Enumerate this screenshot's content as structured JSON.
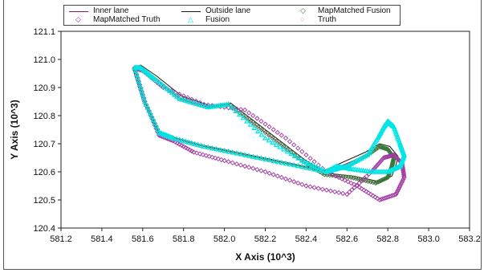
{
  "chart_data": {
    "type": "line",
    "title": "",
    "xlabel": "X Axis (10^3)",
    "ylabel": "Y Axis (10^3)",
    "xlim": [
      581.2,
      583.2
    ],
    "ylim": [
      120.4,
      121.1
    ],
    "xticks": [
      "581.2",
      "581.4",
      "581.6",
      "581.8",
      "582.0",
      "582.2",
      "582.4",
      "582.6",
      "582.8",
      "583.0",
      "583.2"
    ],
    "yticks": [
      "121.1",
      "121.0",
      "120.9",
      "120.8",
      "120.7",
      "120.6",
      "120.5",
      "120.4"
    ],
    "grid": false,
    "legend_position": "top",
    "series": [
      {
        "name": "Inner lane",
        "style": "line",
        "color": "#8b1a4a",
        "x": [
          581.56,
          581.59,
          581.66,
          581.78,
          581.92,
          582.02,
          582.2,
          582.38,
          582.49,
          582.62,
          582.74,
          582.8,
          582.82,
          582.83,
          582.8,
          582.76,
          582.7,
          582.5,
          582.3,
          582.1,
          581.9,
          581.75,
          581.68,
          581.61,
          581.56
        ],
        "y": [
          120.97,
          120.97,
          120.93,
          120.86,
          120.83,
          120.84,
          120.74,
          120.64,
          120.59,
          120.58,
          120.56,
          120.58,
          120.62,
          120.65,
          120.68,
          120.69,
          120.66,
          120.6,
          120.63,
          120.66,
          120.69,
          120.72,
          120.74,
          120.85,
          120.97
        ]
      },
      {
        "name": "Outside lane",
        "style": "line",
        "color": "#1a1a1a",
        "x": [
          581.55,
          581.59,
          581.67,
          581.79,
          581.93,
          582.03,
          582.21,
          582.39,
          582.5,
          582.63,
          582.76,
          582.82,
          582.84,
          582.85,
          582.81,
          582.76,
          582.69,
          582.49,
          582.29,
          582.09,
          581.89,
          581.74,
          581.67,
          581.6,
          581.55
        ],
        "y": [
          120.97,
          120.98,
          120.94,
          120.87,
          120.835,
          120.845,
          120.745,
          120.645,
          120.595,
          120.585,
          120.565,
          120.585,
          120.625,
          120.655,
          120.69,
          120.7,
          120.67,
          120.605,
          120.635,
          120.665,
          120.695,
          120.725,
          120.745,
          120.855,
          120.97
        ]
      },
      {
        "name": "MapMatched Fusion",
        "style": "marker",
        "marker": "diamond",
        "color": "#3a7a3a",
        "x": [
          581.56,
          581.59,
          581.66,
          581.78,
          581.92,
          582.02,
          582.2,
          582.38,
          582.49,
          582.62,
          582.74,
          582.8,
          582.82,
          582.83,
          582.8,
          582.76,
          582.7,
          582.6,
          582.5,
          582.3,
          582.1,
          581.9,
          581.75,
          581.68,
          581.61,
          581.56
        ],
        "y": [
          120.97,
          120.97,
          120.93,
          120.86,
          120.83,
          120.84,
          120.74,
          120.64,
          120.59,
          120.58,
          120.56,
          120.58,
          120.62,
          120.65,
          120.68,
          120.69,
          120.66,
          120.62,
          120.6,
          120.63,
          120.66,
          120.69,
          120.72,
          120.74,
          120.85,
          120.97
        ]
      },
      {
        "name": "MapMatched Truth",
        "style": "marker",
        "marker": "diamond",
        "color": "#a03aa0",
        "x": [
          581.56,
          581.6,
          581.7,
          581.9,
          582.1,
          582.3,
          582.5,
          582.65,
          582.76,
          582.84,
          582.88,
          582.87,
          582.83,
          582.78,
          582.72,
          582.6,
          582.4,
          582.2,
          582.0,
          581.85,
          581.75,
          581.68,
          581.61,
          581.56
        ],
        "y": [
          120.97,
          120.96,
          120.9,
          120.84,
          120.82,
          120.72,
          120.6,
          120.55,
          120.5,
          120.52,
          120.58,
          120.63,
          120.66,
          120.65,
          120.6,
          120.52,
          120.55,
          120.6,
          120.64,
          120.67,
          120.71,
          120.73,
          120.85,
          120.97
        ]
      },
      {
        "name": "Fusion",
        "style": "marker",
        "marker": "triangle",
        "color": "#00e5e5",
        "x": [
          581.56,
          581.59,
          581.66,
          581.78,
          581.92,
          582.02,
          582.2,
          582.38,
          582.5,
          582.55,
          582.62,
          582.72,
          582.8,
          582.86,
          582.88,
          582.86,
          582.83,
          582.8,
          582.78,
          582.75,
          582.7,
          582.6,
          582.5,
          582.3,
          582.1,
          581.9,
          581.75,
          581.68,
          581.61,
          581.56
        ],
        "y": [
          120.97,
          120.97,
          120.93,
          120.86,
          120.83,
          120.84,
          120.72,
          120.64,
          120.6,
          120.62,
          120.61,
          120.6,
          120.6,
          120.62,
          120.66,
          120.7,
          120.76,
          120.78,
          120.76,
          120.72,
          120.66,
          120.62,
          120.6,
          120.63,
          120.66,
          120.69,
          120.72,
          120.74,
          120.85,
          120.97
        ]
      },
      {
        "name": "Truth",
        "style": "marker",
        "marker": "circle",
        "color": "#e0a0a0",
        "x": [],
        "y": []
      }
    ]
  }
}
